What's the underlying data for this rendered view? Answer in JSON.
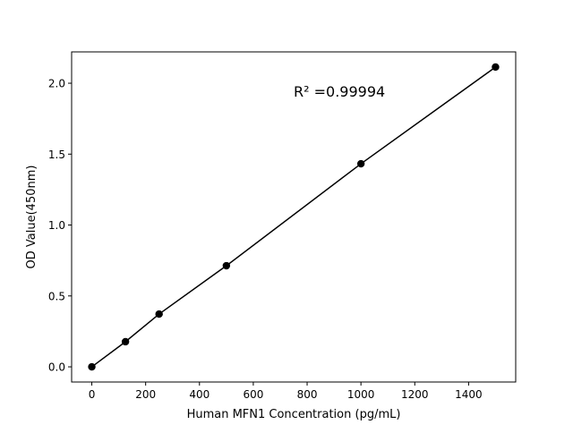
{
  "chart_data": {
    "type": "line",
    "title": "",
    "xlabel": "Human MFN1 Concentration (pg/mL)",
    "ylabel": "OD Value(450nm)",
    "xlim": [
      -75,
      1575
    ],
    "ylim": [
      -0.107,
      2.221
    ],
    "xticks": [
      0,
      200,
      400,
      600,
      800,
      1000,
      1200,
      1400
    ],
    "yticks": [
      0.0,
      0.5,
      1.0,
      1.5,
      2.0
    ],
    "ytick_labels": [
      "0.0",
      "0.5",
      "1.0",
      "1.5",
      "2.0"
    ],
    "grid": false,
    "series": [
      {
        "x": [
          0,
          125,
          250,
          500,
          1000,
          1500
        ],
        "y": [
          0.0,
          0.177,
          0.372,
          0.713,
          1.432,
          2.114
        ],
        "color": "#000000",
        "marker": "circle"
      }
    ],
    "annotation": "R² =0.99994"
  }
}
